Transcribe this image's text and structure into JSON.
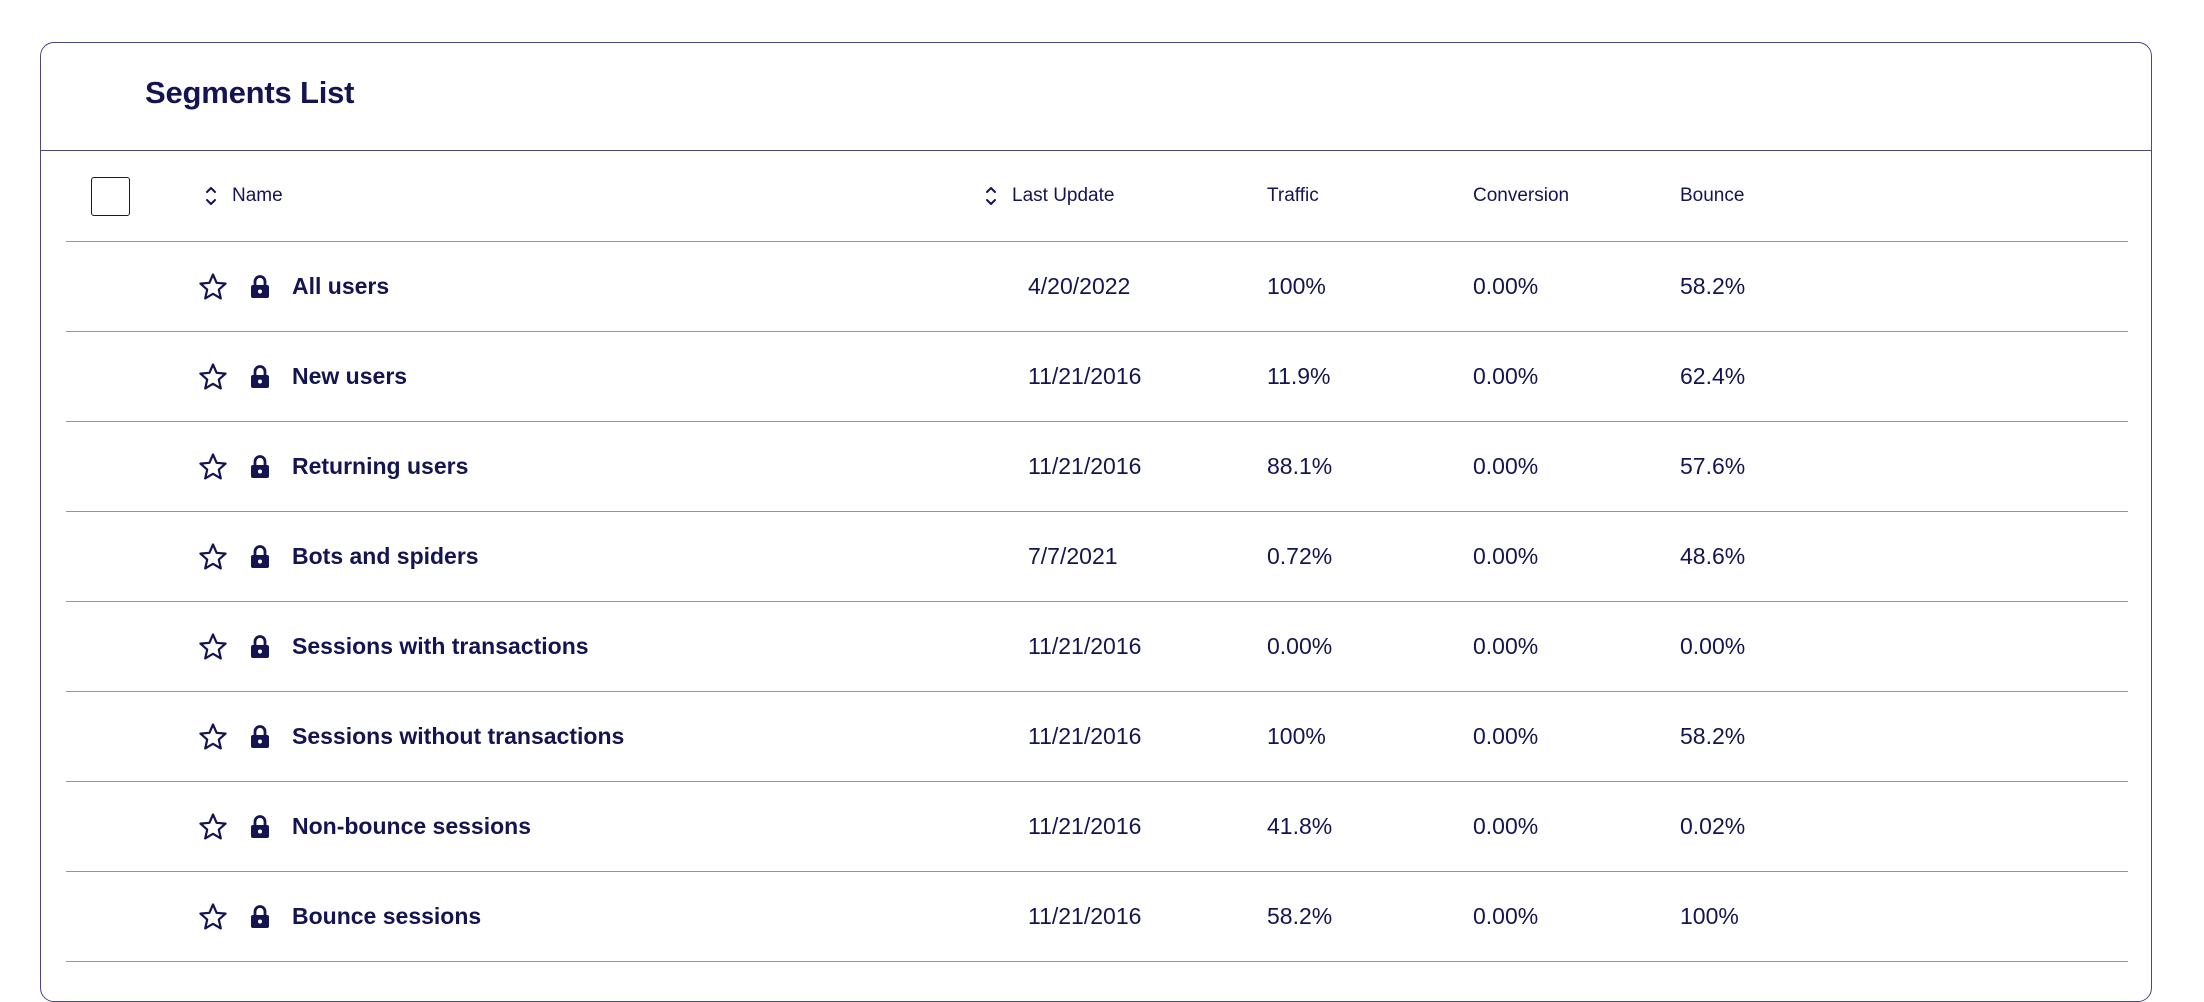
{
  "panel": {
    "title": "Segments List"
  },
  "table": {
    "columns": {
      "name": "Name",
      "last_update": "Last Update",
      "traffic": "Traffic",
      "conversion": "Conversion",
      "bounce": "Bounce"
    },
    "rows": [
      {
        "name": "All users",
        "last_update": "4/20/2022",
        "traffic": "100%",
        "conversion": "0.00%",
        "bounce": "58.2%"
      },
      {
        "name": "New users",
        "last_update": "11/21/2016",
        "traffic": "11.9%",
        "conversion": "0.00%",
        "bounce": "62.4%"
      },
      {
        "name": "Returning users",
        "last_update": "11/21/2016",
        "traffic": "88.1%",
        "conversion": "0.00%",
        "bounce": "57.6%"
      },
      {
        "name": "Bots and spiders",
        "last_update": "7/7/2021",
        "traffic": "0.72%",
        "conversion": "0.00%",
        "bounce": "48.6%"
      },
      {
        "name": "Sessions with transactions",
        "last_update": "11/21/2016",
        "traffic": "0.00%",
        "conversion": "0.00%",
        "bounce": "0.00%"
      },
      {
        "name": "Sessions without transactions",
        "last_update": "11/21/2016",
        "traffic": "100%",
        "conversion": "0.00%",
        "bounce": "58.2%"
      },
      {
        "name": "Non-bounce sessions",
        "last_update": "11/21/2016",
        "traffic": "41.8%",
        "conversion": "0.00%",
        "bounce": "0.02%"
      },
      {
        "name": "Bounce sessions",
        "last_update": "11/21/2016",
        "traffic": "58.2%",
        "conversion": "0.00%",
        "bounce": "100%"
      }
    ]
  },
  "icons": {
    "sort": "sort-icon",
    "star": "star-icon",
    "lock": "lock-icon"
  },
  "colors": {
    "text": "#141452",
    "panel_border": "#4a4a7c",
    "row_divider": "#8f96a8"
  }
}
